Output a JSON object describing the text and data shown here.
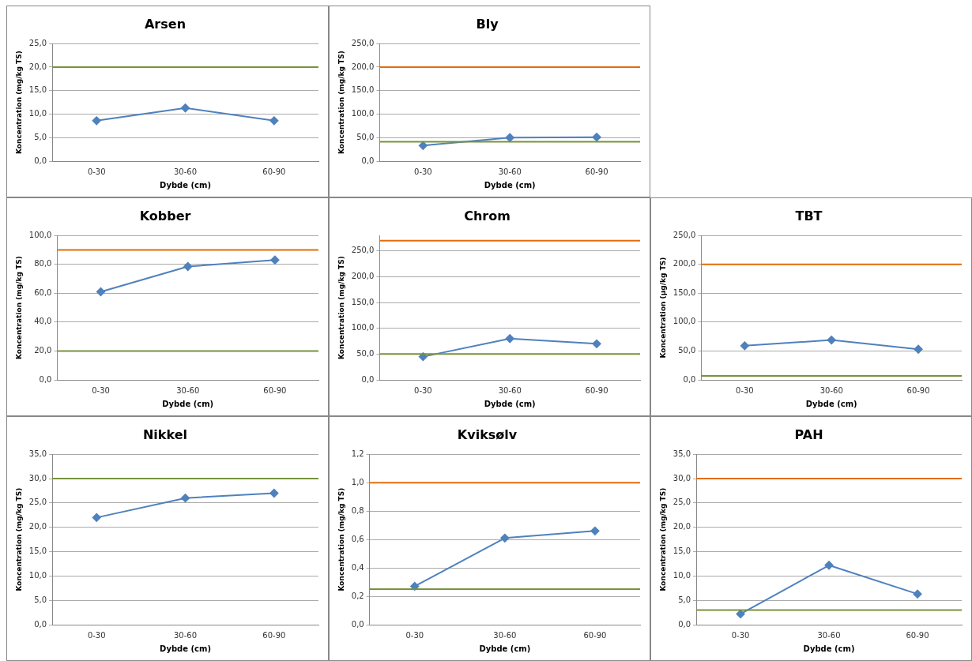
{
  "chart_data": [
    {
      "type": "line",
      "title": "Arsen",
      "xlabel": "Dybde (cm)",
      "ylabel": "Koncentration (mg/kg TS)",
      "categories": [
        "0-30",
        "30-60",
        "60-90"
      ],
      "series": [
        {
          "color": "#4f81bd",
          "values": [
            8.6,
            11.3,
            8.6
          ]
        }
      ],
      "ylim": [
        0,
        25
      ],
      "yticks": [
        {
          "value": 0,
          "label": "0,0"
        },
        {
          "value": 5,
          "label": "5,0"
        },
        {
          "value": 10,
          "label": "10,0"
        },
        {
          "value": 15,
          "label": "15,0"
        },
        {
          "value": 20,
          "label": "20,0"
        },
        {
          "value": 25,
          "label": "25,0"
        }
      ],
      "ref_lines": [
        {
          "axis": "y",
          "value": 20,
          "color": "#77933c"
        }
      ],
      "grid": "y",
      "legend": false,
      "marker": "diamond"
    },
    {
      "type": "line",
      "title": "Bly",
      "xlabel": "Dybde (cm)",
      "ylabel": "Koncentration (mg/kg TS)",
      "categories": [
        "0-30",
        "30-60",
        "60-90"
      ],
      "series": [
        {
          "color": "#4f81bd",
          "values": [
            33,
            50,
            51
          ]
        }
      ],
      "ylim": [
        0,
        250
      ],
      "yticks": [
        {
          "value": 0,
          "label": "0,0"
        },
        {
          "value": 50,
          "label": "50,0"
        },
        {
          "value": 100,
          "label": "100,0"
        },
        {
          "value": 150,
          "label": "150,0"
        },
        {
          "value": 200,
          "label": "200,0"
        },
        {
          "value": 250,
          "label": "250,0"
        }
      ],
      "ref_lines": [
        {
          "axis": "y",
          "value": 200,
          "color": "#e46c0a"
        },
        {
          "axis": "y",
          "value": 41,
          "color": "#77933c"
        }
      ],
      "grid": "y",
      "legend": false,
      "marker": "diamond"
    },
    {
      "type": "line",
      "title": "Kobber",
      "xlabel": "Dybde (cm)",
      "ylabel": "Koncentration (mg/kg TS)",
      "categories": [
        "0-30",
        "30-60",
        "60-90"
      ],
      "series": [
        {
          "color": "#4f81bd",
          "values": [
            61,
            78.5,
            83
          ]
        }
      ],
      "ylim": [
        0,
        100
      ],
      "yticks": [
        {
          "value": 0,
          "label": "0,0"
        },
        {
          "value": 20,
          "label": "20,0"
        },
        {
          "value": 40,
          "label": "40,0"
        },
        {
          "value": 60,
          "label": "60,0"
        },
        {
          "value": 80,
          "label": "80,0"
        },
        {
          "value": 100,
          "label": "100,0"
        }
      ],
      "ref_lines": [
        {
          "axis": "y",
          "value": 90,
          "color": "#e46c0a"
        },
        {
          "axis": "y",
          "value": 20,
          "color": "#77933c"
        }
      ],
      "grid": "y",
      "legend": false,
      "marker": "diamond"
    },
    {
      "type": "line",
      "title": "Chrom",
      "xlabel": "Dybde (cm)",
      "ylabel": "Koncentration (mg/kg TS)",
      "categories": [
        "0-30",
        "30-60",
        "60-90"
      ],
      "series": [
        {
          "color": "#4f81bd",
          "values": [
            45,
            80,
            70
          ]
        }
      ],
      "ylim": [
        0,
        280
      ],
      "yticks": [
        {
          "value": 0,
          "label": "0,0"
        },
        {
          "value": 50,
          "label": "50,0"
        },
        {
          "value": 100,
          "label": "100,0"
        },
        {
          "value": 150,
          "label": "150,0"
        },
        {
          "value": 200,
          "label": "200,0"
        },
        {
          "value": 250,
          "label": "250,0"
        }
      ],
      "ref_lines": [
        {
          "axis": "y",
          "value": 270,
          "color": "#e46c0a"
        },
        {
          "axis": "y",
          "value": 50,
          "color": "#77933c"
        }
      ],
      "grid": "y",
      "legend": false,
      "marker": "diamond"
    },
    {
      "type": "line",
      "title": "TBT",
      "xlabel": "Dybde (cm)",
      "ylabel": "Koncentration (µg/kg TS)",
      "categories": [
        "0-30",
        "30-60",
        "60-90"
      ],
      "series": [
        {
          "color": "#4f81bd",
          "values": [
            59,
            69,
            53
          ]
        }
      ],
      "ylim": [
        0,
        250
      ],
      "yticks": [
        {
          "value": 0,
          "label": "0,0"
        },
        {
          "value": 50,
          "label": "50,0"
        },
        {
          "value": 100,
          "label": "100,0"
        },
        {
          "value": 150,
          "label": "150,0"
        },
        {
          "value": 200,
          "label": "200,0"
        },
        {
          "value": 250,
          "label": "250,0"
        }
      ],
      "ref_lines": [
        {
          "axis": "y",
          "value": 200,
          "color": "#e46c0a"
        },
        {
          "axis": "y",
          "value": 7,
          "color": "#77933c"
        }
      ],
      "grid": "y",
      "legend": false,
      "marker": "diamond"
    },
    {
      "type": "line",
      "title": "Nikkel",
      "xlabel": "Dybde (cm)",
      "ylabel": "Koncentration (mg/kg TS)",
      "categories": [
        "0-30",
        "30-60",
        "60-90"
      ],
      "series": [
        {
          "color": "#4f81bd",
          "values": [
            22,
            26,
            27
          ]
        }
      ],
      "ylim": [
        0,
        35
      ],
      "yticks": [
        {
          "value": 0,
          "label": "0,0"
        },
        {
          "value": 5,
          "label": "5,0"
        },
        {
          "value": 10,
          "label": "10,0"
        },
        {
          "value": 15,
          "label": "15,0"
        },
        {
          "value": 20,
          "label": "20,0"
        },
        {
          "value": 25,
          "label": "25,0"
        },
        {
          "value": 30,
          "label": "30,0"
        },
        {
          "value": 35,
          "label": "35,0"
        }
      ],
      "ref_lines": [
        {
          "axis": "y",
          "value": 30,
          "color": "#77933c"
        }
      ],
      "grid": "y",
      "legend": false,
      "marker": "diamond"
    },
    {
      "type": "line",
      "title": "Kviksølv",
      "xlabel": "Dybde (cm)",
      "ylabel": "Koncentration (mg/kg TS)",
      "categories": [
        "0-30",
        "30-60",
        "60-90"
      ],
      "series": [
        {
          "color": "#4f81bd",
          "values": [
            0.27,
            0.61,
            0.66
          ]
        }
      ],
      "ylim": [
        0,
        1.2
      ],
      "yticks": [
        {
          "value": 0,
          "label": "0,0"
        },
        {
          "value": 0.2,
          "label": "0,2"
        },
        {
          "value": 0.4,
          "label": "0,4"
        },
        {
          "value": 0.6,
          "label": "0,6"
        },
        {
          "value": 0.8,
          "label": "0,8"
        },
        {
          "value": 1,
          "label": "1,0"
        },
        {
          "value": 1.2,
          "label": "1,2"
        }
      ],
      "ref_lines": [
        {
          "axis": "y",
          "value": 1,
          "color": "#e46c0a"
        },
        {
          "axis": "y",
          "value": 0.25,
          "color": "#77933c"
        }
      ],
      "grid": "y",
      "legend": false,
      "marker": "diamond"
    },
    {
      "type": "line",
      "title": "PAH",
      "xlabel": "Dybde (cm)",
      "ylabel": "Koncentration (mg/kg TS)",
      "categories": [
        "0-30",
        "30-60",
        "60-90"
      ],
      "series": [
        {
          "color": "#4f81bd",
          "values": [
            2.2,
            12.2,
            6.3
          ]
        }
      ],
      "ylim": [
        0,
        35
      ],
      "yticks": [
        {
          "value": 0,
          "label": "0,0"
        },
        {
          "value": 5,
          "label": "5,0"
        },
        {
          "value": 10,
          "label": "10,0"
        },
        {
          "value": 15,
          "label": "15,0"
        },
        {
          "value": 20,
          "label": "20,0"
        },
        {
          "value": 25,
          "label": "25,0"
        },
        {
          "value": 30,
          "label": "30,0"
        },
        {
          "value": 35,
          "label": "35,0"
        }
      ],
      "ref_lines": [
        {
          "axis": "y",
          "value": 30,
          "color": "#e46c0a"
        },
        {
          "axis": "y",
          "value": 3,
          "color": "#77933c"
        }
      ],
      "grid": "y",
      "legend": false,
      "marker": "diamond"
    }
  ]
}
